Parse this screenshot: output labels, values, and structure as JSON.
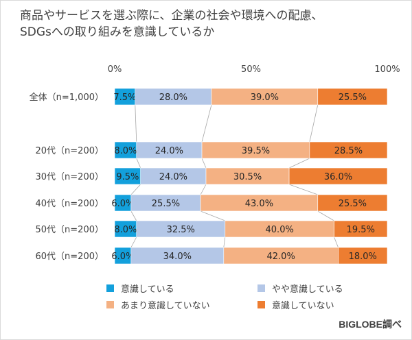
{
  "chart_data": {
    "type": "bar",
    "stacked": true,
    "orientation": "horizontal",
    "title": "商品やサービスを選ぶ際に、企業の社会や環境への配慮、\nSDGsへの取り組みを意識しているか",
    "xlim": [
      0,
      100
    ],
    "x_ticks": [
      "0%",
      "50%",
      "100%"
    ],
    "categories": [
      "全体（n=1,000）",
      "20代（n=200）",
      "30代（n=200）",
      "40代（n=200）",
      "50代（n=200）",
      "60代（n=200）"
    ],
    "series": [
      {
        "name": "意識している",
        "color": "#13a0dc",
        "values": [
          7.5,
          8.0,
          9.5,
          6.0,
          8.0,
          6.0
        ],
        "labels": [
          "7.5%",
          "8.0%",
          "9.5%",
          "6.0%",
          "8.0%",
          "6.0%"
        ]
      },
      {
        "name": "やや意識している",
        "color": "#b4c7e7",
        "values": [
          28.0,
          24.0,
          24.0,
          25.5,
          32.5,
          34.0
        ],
        "labels": [
          "28.0%",
          "24.0%",
          "24.0%",
          "25.5%",
          "32.5%",
          "34.0%"
        ]
      },
      {
        "name": "あまり意識していない",
        "color": "#f4b183",
        "values": [
          39.0,
          39.5,
          30.5,
          43.0,
          40.0,
          42.0
        ],
        "labels": [
          "39.0%",
          "39.5%",
          "30.5%",
          "43.0%",
          "40.0%",
          "42.0%"
        ]
      },
      {
        "name": "意識していない",
        "color": "#ed7d31",
        "values": [
          25.5,
          28.5,
          36.0,
          25.5,
          19.5,
          18.0
        ],
        "labels": [
          "25.5%",
          "28.5%",
          "36.0%",
          "25.5%",
          "19.5%",
          "18.0%"
        ]
      }
    ],
    "legend_position": "bottom",
    "grid": false,
    "connector_lines": true
  },
  "source": "BIGLOBE調べ"
}
